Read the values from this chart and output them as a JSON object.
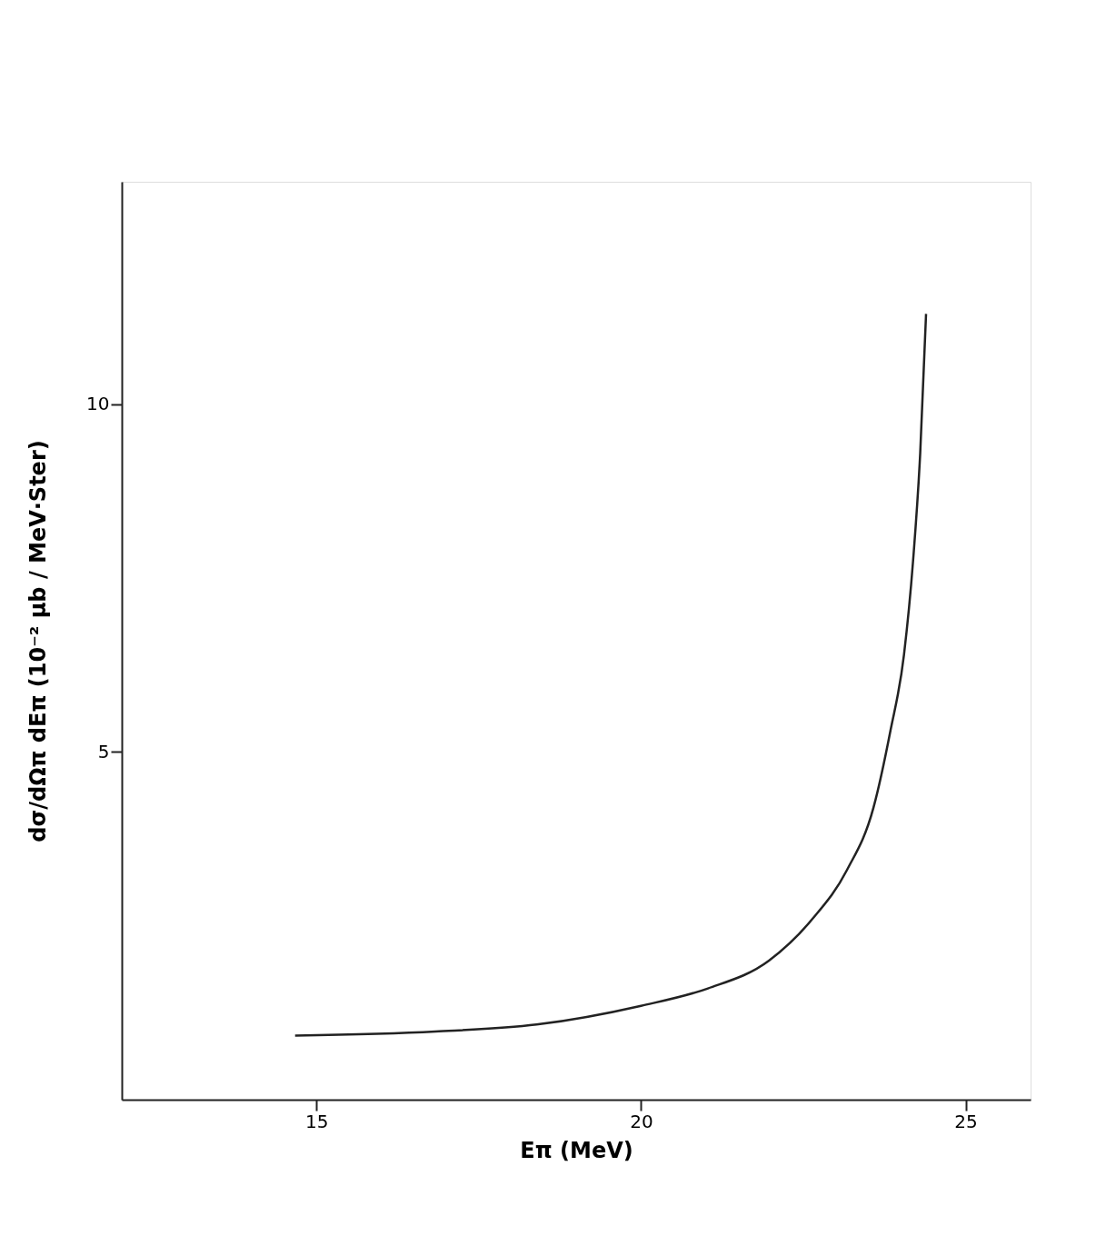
{
  "chart_data": {
    "type": "line",
    "xlabel": "Eπ (MeV)",
    "ylabel": "dσ/dΩπ dEπ  (10⁻² μb / MeV·Ster)",
    "x": [
      14.67,
      16.83,
      18.39,
      20.0,
      21.03,
      21.97,
      22.64,
      23.17,
      23.58,
      23.84,
      24.05,
      24.19,
      24.3,
      24.39
    ],
    "series": [
      {
        "color": "#222222",
        "values": [
          0.92,
          0.98,
          1.08,
          1.35,
          1.6,
          2.0,
          2.6,
          3.3,
          4.2,
          5.3,
          6.4,
          7.75,
          9.3,
          11.3
        ]
      }
    ],
    "xlim": [
      12,
      26
    ],
    "ylim": [
      0,
      13.2
    ],
    "xticks": [
      15,
      20,
      25
    ],
    "yticks": [
      5,
      10
    ],
    "grid": false,
    "marker": "none",
    "line_style": "solid"
  }
}
